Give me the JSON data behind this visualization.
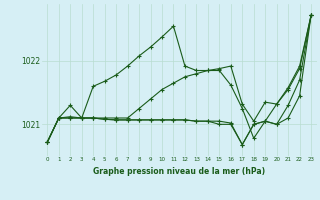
{
  "title": "Graphe pression niveau de la mer (hPa)",
  "bg_color": "#d6eff5",
  "grid_color": "#b8ddd0",
  "line_color": "#1a5c1a",
  "x_ticks": [
    0,
    1,
    2,
    3,
    4,
    5,
    6,
    7,
    8,
    9,
    10,
    11,
    12,
    13,
    14,
    15,
    16,
    17,
    18,
    19,
    20,
    21,
    22,
    23
  ],
  "y_ticks": [
    1021,
    1022
  ],
  "ylim": [
    1020.5,
    1022.9
  ],
  "xlim": [
    -0.5,
    23.5
  ],
  "line_jagged": [
    1020.72,
    1021.1,
    1021.3,
    1021.1,
    1021.6,
    1021.68,
    1021.78,
    1021.92,
    1022.08,
    1022.22,
    1022.38,
    1022.55,
    1021.92,
    1021.85,
    1021.85,
    1021.85,
    1021.62,
    1021.25,
    1020.78,
    1021.05,
    1021.32,
    1021.58,
    1021.92,
    1022.72
  ],
  "line_diagonal": [
    1020.72,
    1021.1,
    1021.1,
    1021.1,
    1021.1,
    1021.1,
    1021.1,
    1021.1,
    1021.25,
    1021.4,
    1021.55,
    1021.65,
    1021.75,
    1021.8,
    1021.85,
    1021.88,
    1021.92,
    1021.32,
    1021.05,
    1021.35,
    1021.32,
    1021.55,
    1021.88,
    1022.72
  ],
  "line_flat1": [
    1020.72,
    1021.1,
    1021.12,
    1021.1,
    1021.1,
    1021.08,
    1021.07,
    1021.07,
    1021.07,
    1021.07,
    1021.07,
    1021.07,
    1021.07,
    1021.05,
    1021.05,
    1021.05,
    1021.02,
    1020.68,
    1021.0,
    1021.05,
    1021.0,
    1021.1,
    1021.45,
    1022.72
  ],
  "line_flat2": [
    1020.72,
    1021.1,
    1021.1,
    1021.1,
    1021.1,
    1021.08,
    1021.07,
    1021.07,
    1021.07,
    1021.07,
    1021.07,
    1021.07,
    1021.07,
    1021.05,
    1021.05,
    1021.0,
    1021.0,
    1020.68,
    1021.0,
    1021.05,
    1021.0,
    1021.3,
    1021.7,
    1022.72
  ]
}
